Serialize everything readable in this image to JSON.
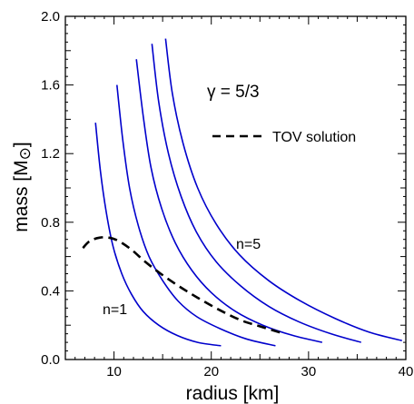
{
  "chart_data": {
    "type": "line",
    "title": "",
    "xlabel": "radius [km]",
    "ylabel": "mass [M",
    "ylabel_symbol": "⊙",
    "ylabel_close": "]",
    "xlim": [
      5,
      40
    ],
    "ylim": [
      0,
      2.0
    ],
    "xticks": [
      10,
      20,
      30,
      40
    ],
    "yticks": [
      0.0,
      0.4,
      0.8,
      1.2,
      1.6,
      2.0
    ],
    "xtick_labels": [
      "10",
      "20",
      "30",
      "40"
    ],
    "ytick_labels": [
      "0.0",
      "0.4",
      "0.8",
      "1.2",
      "1.6",
      "2.0"
    ],
    "grid": false,
    "series": [
      {
        "label": "n=1",
        "color": "#0000cc",
        "style": "solid",
        "x": [
          8.1,
          8.6,
          9.2,
          9.9,
          10.8,
          11.8,
          13.0,
          14.6,
          16.5,
          18.6,
          21.0
        ],
        "y": [
          1.38,
          1.1,
          0.86,
          0.66,
          0.5,
          0.38,
          0.28,
          0.2,
          0.14,
          0.1,
          0.08
        ]
      },
      {
        "label": "",
        "color": "#0000cc",
        "style": "solid",
        "x": [
          10.3,
          10.9,
          11.6,
          12.5,
          13.6,
          15.0,
          16.6,
          18.5,
          20.9,
          23.6,
          26.6
        ],
        "y": [
          1.6,
          1.28,
          1.0,
          0.78,
          0.6,
          0.46,
          0.34,
          0.25,
          0.18,
          0.12,
          0.08
        ]
      },
      {
        "label": "",
        "color": "#0000cc",
        "style": "solid",
        "x": [
          12.3,
          13.0,
          13.8,
          14.9,
          16.3,
          18.0,
          20.0,
          22.5,
          25.3,
          28.4,
          31.4
        ],
        "y": [
          1.75,
          1.42,
          1.12,
          0.88,
          0.68,
          0.52,
          0.39,
          0.28,
          0.2,
          0.14,
          0.1
        ]
      },
      {
        "label": "",
        "color": "#0000cc",
        "style": "solid",
        "x": [
          13.9,
          14.6,
          15.6,
          16.9,
          18.5,
          20.5,
          23.0,
          25.9,
          29.0,
          32.3,
          35.4
        ],
        "y": [
          1.84,
          1.5,
          1.2,
          0.95,
          0.74,
          0.57,
          0.43,
          0.31,
          0.22,
          0.15,
          0.1
        ]
      },
      {
        "label": "n=5",
        "color": "#0000cc",
        "style": "solid",
        "x": [
          15.3,
          16.0,
          17.1,
          18.6,
          20.5,
          22.9,
          25.9,
          29.2,
          32.7,
          36.2,
          39.6
        ],
        "y": [
          1.87,
          1.55,
          1.26,
          1.0,
          0.79,
          0.61,
          0.46,
          0.34,
          0.24,
          0.16,
          0.11
        ]
      },
      {
        "label": "TOV solution",
        "color": "#000000",
        "style": "dashed",
        "x": [
          6.8,
          7.5,
          8.5,
          9.5,
          10.5,
          11.8,
          13.2,
          14.8,
          16.6,
          18.6,
          20.8,
          23.0,
          25.2,
          27.5
        ],
        "y": [
          0.65,
          0.69,
          0.71,
          0.71,
          0.69,
          0.64,
          0.57,
          0.5,
          0.43,
          0.36,
          0.29,
          0.23,
          0.19,
          0.15
        ]
      }
    ],
    "annotations": {
      "gamma": "γ = 5/3",
      "legend_label": "TOV solution",
      "n1_label": "n=1",
      "n5_label": "n=5"
    }
  }
}
